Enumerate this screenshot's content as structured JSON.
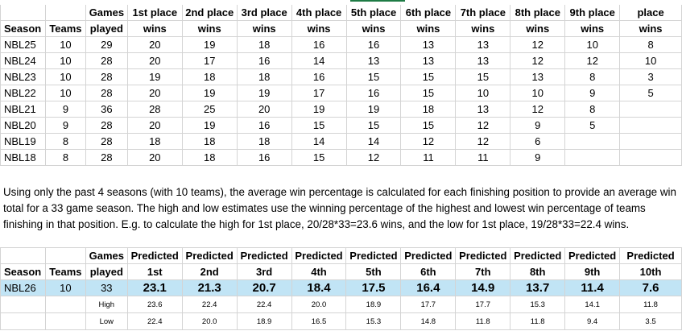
{
  "top_table": {
    "header1": [
      "",
      "",
      "Games",
      "1st place",
      "2nd place",
      "3rd place",
      "4th place",
      "5th place",
      "6th place",
      "7th place",
      "8th place",
      "9th place",
      "place"
    ],
    "header2": [
      "Season",
      "Teams",
      "played",
      "wins",
      "wins",
      "wins",
      "wins",
      "wins",
      "wins",
      "wins",
      "wins",
      "wins",
      "wins"
    ],
    "rows": [
      [
        "NBL25",
        "10",
        "29",
        "20",
        "19",
        "18",
        "16",
        "16",
        "13",
        "13",
        "12",
        "10",
        "8"
      ],
      [
        "NBL24",
        "10",
        "28",
        "20",
        "17",
        "16",
        "14",
        "13",
        "13",
        "13",
        "12",
        "12",
        "10"
      ],
      [
        "NBL23",
        "10",
        "28",
        "19",
        "18",
        "18",
        "16",
        "15",
        "15",
        "15",
        "13",
        "8",
        "3"
      ],
      [
        "NBL22",
        "10",
        "28",
        "20",
        "19",
        "19",
        "17",
        "16",
        "15",
        "10",
        "10",
        "9",
        "5"
      ],
      [
        "NBL21",
        "9",
        "36",
        "28",
        "25",
        "20",
        "19",
        "19",
        "18",
        "13",
        "12",
        "8",
        ""
      ],
      [
        "NBL20",
        "9",
        "28",
        "20",
        "19",
        "16",
        "15",
        "15",
        "15",
        "12",
        "9",
        "5",
        ""
      ],
      [
        "NBL19",
        "8",
        "28",
        "18",
        "18",
        "18",
        "14",
        "14",
        "12",
        "12",
        "6",
        "",
        ""
      ],
      [
        "NBL18",
        "8",
        "28",
        "20",
        "18",
        "16",
        "15",
        "12",
        "11",
        "11",
        "9",
        "",
        ""
      ]
    ]
  },
  "note": "Using only the past 4 seasons (with 10 teams), the average win percentage is calculated for each finishing position to provide an average win total for a 33 game season. The high and low estimates use the winning percentage of the highest and lowest win percentage of teams finishing in that position. E.g. to calculate the high for 1st place, 20/28*33=23.6 wins, and the low for 1st place, 19/28*33=22.4 wins.",
  "bottom_table": {
    "header1": [
      "",
      "",
      "Games",
      "Predicted",
      "Predicted",
      "Predicted",
      "Predicted",
      "Predicted",
      "Predicted",
      "Predicted",
      "Predicted",
      "Predicted",
      "Predicted"
    ],
    "header2": [
      "Season",
      "Teams",
      "played",
      "1st",
      "2nd",
      "3rd",
      "4th",
      "5th",
      "6th",
      "7th",
      "8th",
      "9th",
      "10th"
    ],
    "main_row": [
      "NBL26",
      "10",
      "33",
      "23.1",
      "21.3",
      "20.7",
      "18.4",
      "17.5",
      "16.4",
      "14.9",
      "13.7",
      "11.4",
      "7.6"
    ],
    "high_row": [
      "",
      "",
      "High",
      "23.6",
      "22.4",
      "22.4",
      "20.0",
      "18.9",
      "17.7",
      "17.7",
      "15.3",
      "14.1",
      "11.8"
    ],
    "low_row": [
      "",
      "",
      "Low",
      "22.4",
      "20.0",
      "18.9",
      "16.5",
      "15.3",
      "14.8",
      "11.8",
      "11.8",
      "9.4",
      "3.5"
    ]
  }
}
